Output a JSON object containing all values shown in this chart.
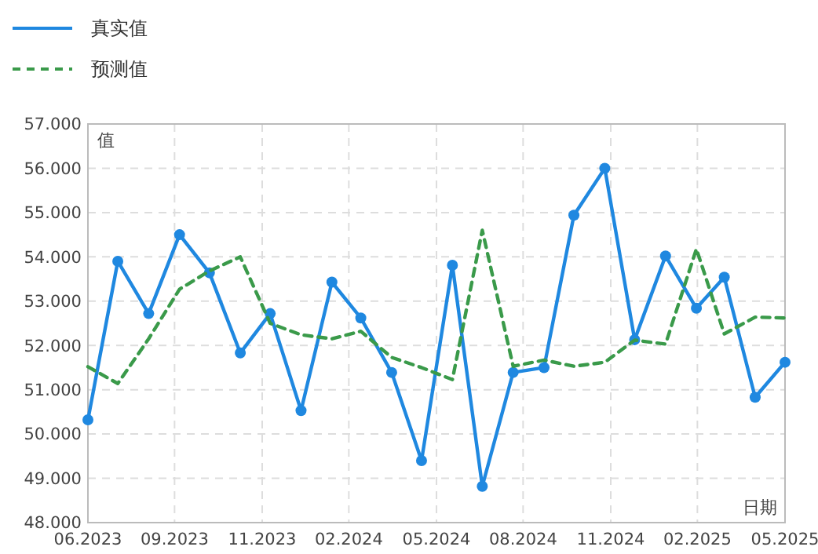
{
  "chart_data": {
    "type": "line",
    "xlabel": "日期",
    "ylabel": "值",
    "legend": "top left",
    "grid": true,
    "x": [
      "2023-06-01",
      "2023-07-01",
      "2023-08-01",
      "2023-09-01",
      "2023-10-01",
      "2023-11-01",
      "2023-12-01",
      "2024-01-01",
      "2024-02-01",
      "2024-03-01",
      "2024-04-01",
      "2024-05-01",
      "2024-06-01",
      "2024-07-01",
      "2024-08-01",
      "2024-09-01",
      "2024-10-01",
      "2024-11-01",
      "2024-12-01",
      "2025-01-01",
      "2025-02-01",
      "2025-03-01",
      "2025-04-01",
      "2025-05-01"
    ],
    "series": [
      {
        "name": "真实值",
        "color": "#1f88e0",
        "marker": "circle",
        "line_style": "solid",
        "values": [
          50.32,
          53.9,
          52.72,
          54.5,
          53.64,
          51.83,
          52.72,
          50.53,
          53.43,
          52.62,
          51.39,
          49.4,
          53.81,
          48.82,
          51.39,
          51.5,
          54.94,
          56.0,
          52.13,
          54.02,
          52.84,
          53.54,
          50.83,
          51.62
        ]
      },
      {
        "name": "预测值",
        "color": "#3a9a4a",
        "marker": "none",
        "line_style": "dashed",
        "values": [
          51.52,
          51.14,
          52.15,
          53.27,
          53.68,
          54.0,
          52.5,
          52.24,
          52.15,
          52.32,
          51.73,
          51.5,
          51.23,
          54.6,
          51.53,
          51.67,
          51.53,
          51.62,
          52.12,
          52.03,
          54.18,
          52.26,
          52.64,
          52.62
        ]
      }
    ],
    "xlim": [
      "2023-06-01",
      "2025-05-01"
    ],
    "xticks": [
      {
        "value": "2023-06-01",
        "label": "06.2023"
      },
      {
        "value": "2023-08-27",
        "label": "09.2023"
      },
      {
        "value": "2023-11-23",
        "label": "11.2023"
      },
      {
        "value": "2024-02-18",
        "label": "02.2024"
      },
      {
        "value": "2024-05-16",
        "label": "05.2024"
      },
      {
        "value": "2024-08-11",
        "label": "08.2024"
      },
      {
        "value": "2024-11-07",
        "label": "11.2024"
      },
      {
        "value": "2025-02-02",
        "label": "02.2025"
      },
      {
        "value": "2025-05-01",
        "label": "05.2025"
      }
    ],
    "ylim": [
      48,
      57
    ],
    "yticks": [
      {
        "value": 48,
        "label": "48.000"
      },
      {
        "value": 49,
        "label": "49.000"
      },
      {
        "value": 50,
        "label": "50.000"
      },
      {
        "value": 51,
        "label": "51.000"
      },
      {
        "value": 52,
        "label": "52.000"
      },
      {
        "value": 53,
        "label": "53.000"
      },
      {
        "value": 54,
        "label": "54.000"
      },
      {
        "value": 55,
        "label": "55.000"
      },
      {
        "value": 56,
        "label": "56.000"
      },
      {
        "value": 57,
        "label": "57.000"
      }
    ]
  }
}
